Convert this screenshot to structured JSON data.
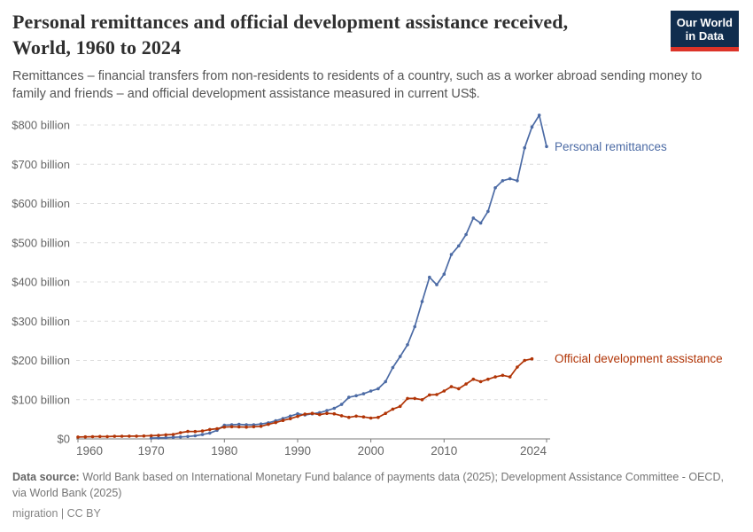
{
  "header": {
    "title_line1": "Personal remittances and official development assistance received,",
    "title_line2": "World, 1960 to 2024",
    "subtitle": "Remittances – financial transfers from non-residents to residents of a country, such as a worker abroad sending money to family and friends – and official development assistance measured in current US$.",
    "logo": {
      "line1": "Our World",
      "line2": "in Data",
      "bg_color": "#102D4E",
      "stripe_color": "#DC3328"
    }
  },
  "chart_data": {
    "type": "line",
    "title": "Personal remittances and official development assistance received, World, 1960 to 2024",
    "xlabel": "",
    "ylabel": "current US$",
    "xlim": [
      1960,
      2024
    ],
    "ylim": [
      0,
      800
    ],
    "x_ticks": [
      1960,
      1970,
      1980,
      1990,
      2000,
      2010,
      2024
    ],
    "y_tick_labels": [
      "$0",
      "$100 billion",
      "$200 billion",
      "$300 billion",
      "$400 billion",
      "$500 billion",
      "$600 billion",
      "$700 billion",
      "$800 billion"
    ],
    "grid": "dashed-horizontal",
    "legend_position": "right-end-of-line",
    "unit": "billion US$",
    "colors": {
      "grid": "#dcdcdc",
      "axis": "#7a7a7a",
      "tick_text": "#666666"
    },
    "series": [
      {
        "name": "Personal remittances",
        "color": "#4C6BA5",
        "start_year": 1970,
        "values": [
          2,
          2.5,
          3,
          4,
          5,
          6,
          8,
          11,
          15,
          22,
          35,
          36,
          37,
          36,
          36,
          38,
          41,
          46,
          52,
          58,
          64,
          61,
          64,
          67,
          72,
          78,
          88,
          106,
          110,
          115,
          122,
          128,
          146,
          182,
          210,
          240,
          286,
          350,
          412,
          393,
          420,
          470,
          492,
          521,
          563,
          550,
          580,
          640,
          658,
          663,
          658,
          742,
          795,
          825,
          745
        ]
      },
      {
        "name": "Official development assistance",
        "color": "#B13507",
        "start_year": 1960,
        "values": [
          4.7,
          5.2,
          5.6,
          6,
          5.9,
          6.5,
          6.7,
          7,
          7,
          7.5,
          8.2,
          9,
          10.3,
          11.4,
          15.9,
          19,
          18.8,
          20,
          24,
          26,
          30,
          31,
          30.5,
          30,
          31,
          32,
          37,
          41.5,
          47,
          51.5,
          57.5,
          63,
          65,
          62,
          65,
          64,
          59,
          55,
          58,
          56,
          53,
          55,
          65,
          76,
          83,
          103,
          103,
          100,
          112,
          113,
          122,
          133,
          128,
          140,
          152,
          146,
          152,
          158,
          162,
          158,
          183,
          200,
          204
        ]
      }
    ]
  },
  "footer": {
    "datasource_label": "Data source:",
    "datasource_text": " World Bank based on International Monetary Fund balance of payments data (2025); Development Assistance Committee - OECD, via World Bank (2025)",
    "license": "migration | CC BY"
  }
}
